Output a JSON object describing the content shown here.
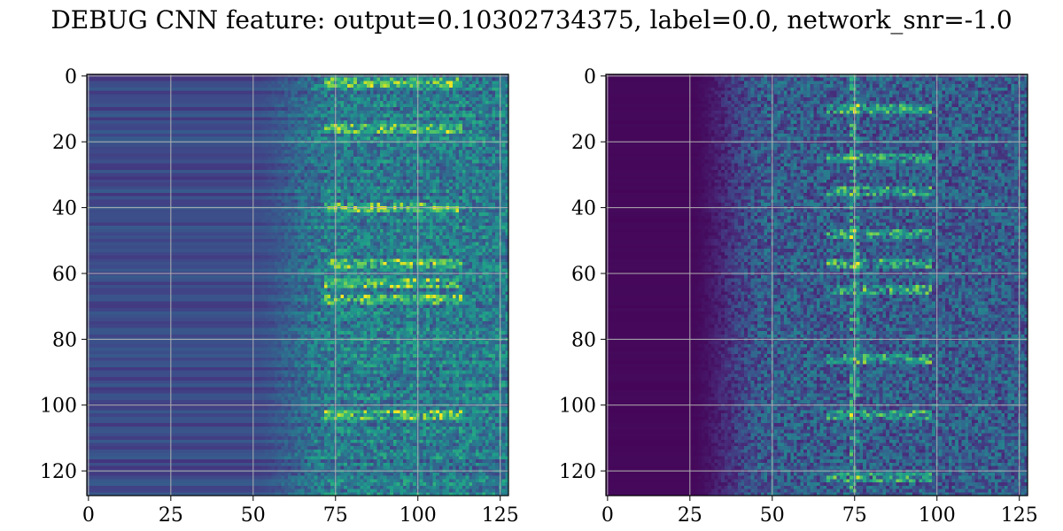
{
  "figure": {
    "title": "DEBUG CNN feature: output=0.10302734375, label=0.0, network_snr=-1.0"
  },
  "colors": {
    "colormap": "viridis",
    "grid": "#b0b0b0",
    "frame": "#000000"
  },
  "chart_data": [
    {
      "type": "heatmap",
      "title": "",
      "xlabel": "",
      "ylabel": "",
      "shape": [
        128,
        128
      ],
      "xlim": [
        0,
        127
      ],
      "ylim": [
        127,
        0
      ],
      "x_ticks": [
        0,
        25,
        50,
        75,
        100,
        125
      ],
      "x_tick_labels": [
        "0",
        "25",
        "50",
        "75",
        "100",
        "125"
      ],
      "y_ticks": [
        0,
        20,
        40,
        60,
        80,
        100,
        120
      ],
      "y_tick_labels": [
        "0",
        "20",
        "40",
        "60",
        "80",
        "100",
        "120"
      ],
      "grid": true,
      "colormap": "viridis",
      "pattern": {
        "description_of_values": "row-banded low values for columns 0-48, rising noisy values after column 50, bright speckles near rows 63, 68, 103 at columns 80-105",
        "left_level": 0.22,
        "right_level": 0.38,
        "transition_col": [
          50,
          75
        ],
        "hot_rows": [
          2,
          16,
          40,
          57,
          63,
          68,
          103
        ],
        "hot_cols": [
          80,
          105
        ]
      }
    },
    {
      "type": "heatmap",
      "title": "",
      "xlabel": "",
      "ylabel": "",
      "shape": [
        128,
        128
      ],
      "xlim": [
        0,
        127
      ],
      "ylim": [
        127,
        0
      ],
      "x_ticks": [
        0,
        25,
        50,
        75,
        100,
        125
      ],
      "x_tick_labels": [
        "0",
        "25",
        "50",
        "75",
        "100",
        "125"
      ],
      "y_ticks": [
        0,
        20,
        40,
        60,
        80,
        100,
        120
      ],
      "y_tick_labels": [
        "0",
        "20",
        "40",
        "60",
        "80",
        "100",
        "120"
      ],
      "grid": true,
      "colormap": "viridis",
      "pattern": {
        "description_of_values": "near-zero for columns 0-20, low for 20-45, brighter streaky band centered near column 80 with highlights along column 75",
        "left_level": 0.02,
        "right_level": 0.25,
        "transition_col": [
          25,
          50
        ],
        "hot_rows": [
          10,
          25,
          35,
          48,
          57,
          65,
          86,
          103,
          122
        ],
        "hot_cols": [
          75,
          90
        ]
      }
    }
  ]
}
